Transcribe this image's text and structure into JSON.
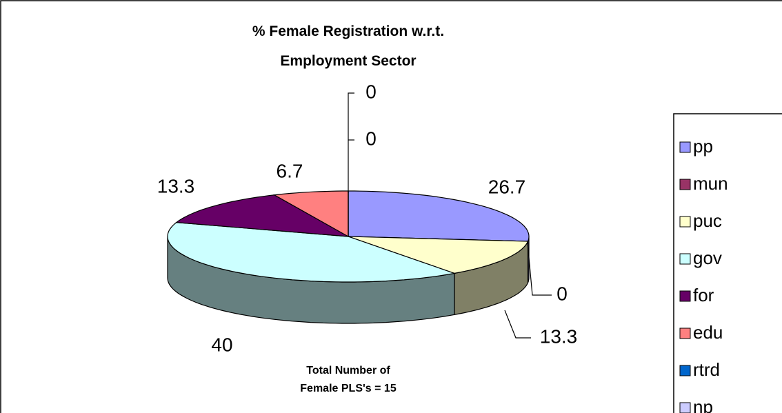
{
  "chart_data": {
    "type": "pie3d",
    "title": "% Female Registration w.r.t. Employment Sector",
    "annotation": "Total Number of Female PLS's = 15",
    "categories": [
      "pp",
      "mun",
      "puc",
      "gov",
      "for",
      "edu",
      "rtrd",
      "np"
    ],
    "values": [
      26.7,
      0,
      13.3,
      40,
      13.3,
      6.7,
      0,
      0
    ],
    "colors": [
      "#9999ff",
      "#993366",
      "#ffffcc",
      "#ccffff",
      "#660066",
      "#ff8080",
      "#0066cc",
      "#ccccff"
    ],
    "legend": "right"
  }
}
